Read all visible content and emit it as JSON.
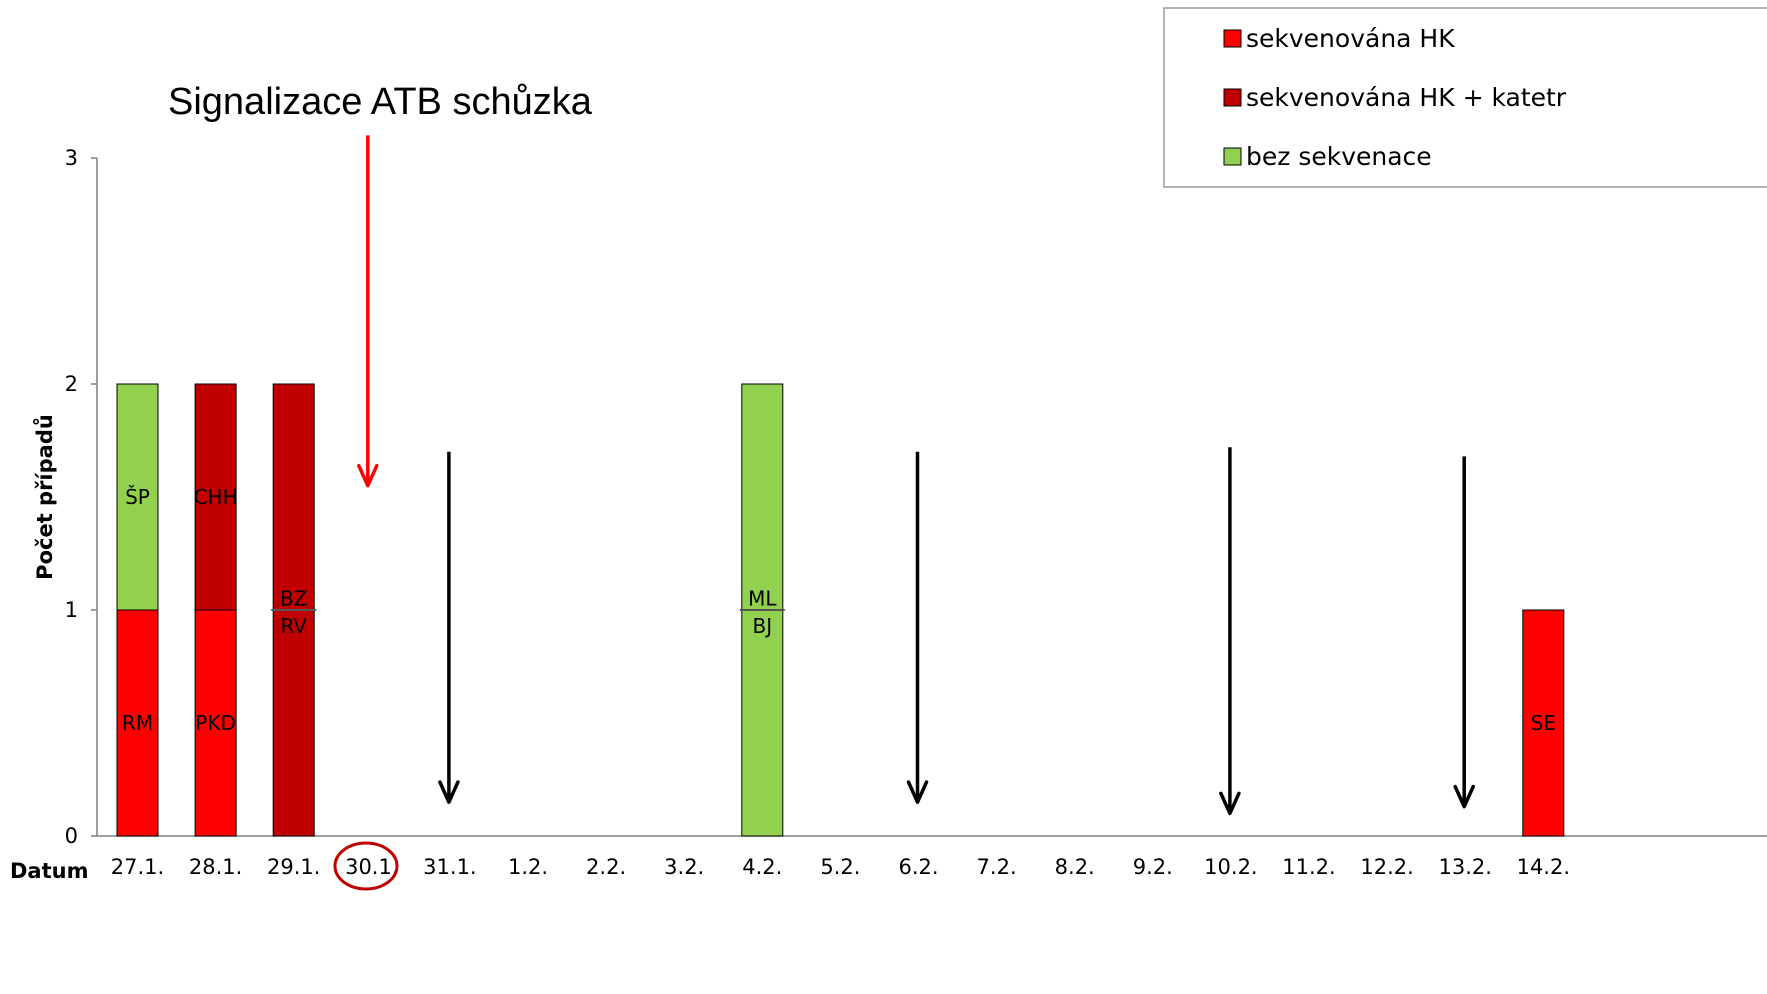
{
  "chart_data": {
    "type": "bar",
    "stacked": true,
    "xlabel": "Datum",
    "ylabel": "Počet případů",
    "ylim": [
      0,
      3
    ],
    "yticks": [
      "0",
      "1",
      "2",
      "3"
    ],
    "categories": [
      "27.1.",
      "28.1.",
      "29.1.",
      "30.1.",
      "31.1.",
      "1.2.",
      "2.2.",
      "3.2.",
      "4.2.",
      "5.2.",
      "6.2.",
      "7.2.",
      "8.2.",
      "9.2.",
      "10.2.",
      "11.2.",
      "12.2.",
      "13.2.",
      "14.2."
    ],
    "highlighted_category": "30.1.",
    "series": [
      {
        "name": "sekvenována HK",
        "color": "#ff0000",
        "values": [
          1,
          1,
          0,
          0,
          0,
          0,
          0,
          0,
          0,
          0,
          0,
          0,
          0,
          0,
          0,
          0,
          0,
          0,
          1
        ]
      },
      {
        "name": "sekvenována HK + katetr",
        "color": "#c00000",
        "values": [
          0,
          1,
          2,
          0,
          0,
          0,
          0,
          0,
          0,
          0,
          0,
          0,
          0,
          0,
          0,
          0,
          0,
          0,
          0
        ]
      },
      {
        "name": "bez sekvenace",
        "color": "#92d050",
        "values": [
          1,
          0,
          0,
          0,
          0,
          0,
          0,
          0,
          2,
          0,
          0,
          0,
          0,
          0,
          0,
          0,
          0,
          0,
          0
        ]
      }
    ],
    "bar_labels": [
      {
        "category": "27.1.",
        "text": "RM",
        "y": 0.5
      },
      {
        "category": "27.1.",
        "text": "ŠP",
        "y": 1.5
      },
      {
        "category": "28.1.",
        "text": "PKD",
        "y": 0.5
      },
      {
        "category": "28.1.",
        "text": "CHH",
        "y": 1.5
      },
      {
        "category": "29.1.",
        "text": "BZ",
        "y": 1.05
      },
      {
        "category": "29.1.",
        "text": "RV",
        "y": 0.93
      },
      {
        "category": "4.2.",
        "text": "ML",
        "y": 1.05
      },
      {
        "category": "4.2.",
        "text": "BJ",
        "y": 0.93
      },
      {
        "category": "14.2.",
        "text": "SE",
        "y": 0.5
      }
    ],
    "dividers": [
      {
        "category": "29.1.",
        "y": 1
      },
      {
        "category": "4.2.",
        "y": 1
      }
    ],
    "annotation": {
      "text": "Signalizace ATB schůzka",
      "category": "30.1."
    },
    "arrows": [
      {
        "category": "30.1.",
        "color": "#ff0000",
        "from": 3.1,
        "to": 1.55
      },
      {
        "category": "31.1.",
        "color": "#000000",
        "from": 1.7,
        "to": 0.15
      },
      {
        "category": "6.2.",
        "color": "#000000",
        "from": 1.7,
        "to": 0.15
      },
      {
        "category": "10.2.",
        "color": "#000000",
        "from": 1.72,
        "to": 0.1
      },
      {
        "category": "13.2.",
        "color": "#000000",
        "from": 1.68,
        "to": 0.13
      }
    ],
    "legend_position": "top-right"
  }
}
